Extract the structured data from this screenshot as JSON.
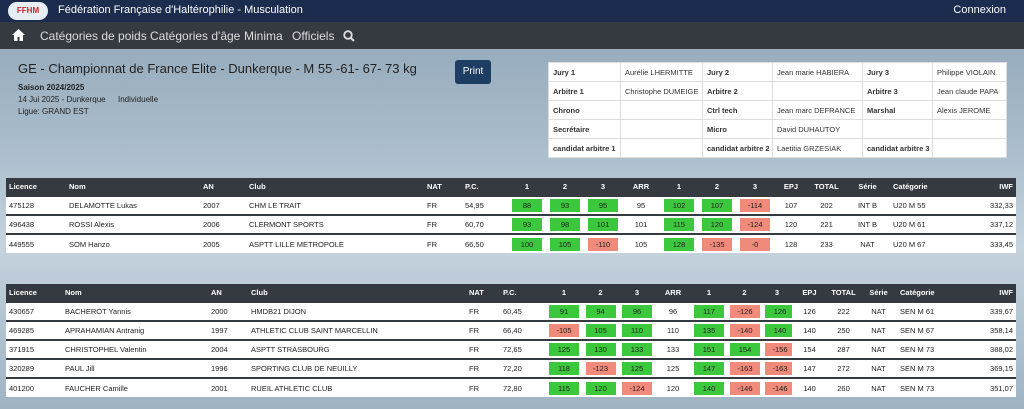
{
  "header": {
    "logo": "FFHM",
    "title": "Fédération Française d'Haltérophilie - Musculation",
    "login": "Connexion"
  },
  "nav": {
    "items": [
      "Catégories de poids",
      "Catégories d'âge",
      "Minima",
      "Officiels"
    ]
  },
  "competition": {
    "title": "GE - Championnat de France Elite - Dunkerque - M 55 -61- 67- 73 kg",
    "season": "Saison 2024/2025",
    "date": "14 Jui 2025 - Dunkerque",
    "type": "Individuelle",
    "league": "Ligue: GRAND EST",
    "print": "Print"
  },
  "officials": {
    "rows": [
      [
        "Jury 1",
        "Aurélie LHERMITTE",
        "Jury 2",
        "Jean marie HABIERA",
        "Jury 3",
        "Philippe VIOLAIN"
      ],
      [
        "Arbitre 1",
        "Christophe DUMEIGE",
        "Arbitre 2",
        null,
        "Arbitre 3",
        "Jean claude PAPA"
      ],
      [
        "Chrono",
        null,
        "Ctrl tech",
        "Jean marc DEFRANCE",
        "Marshal",
        "Alexis JEROME"
      ],
      [
        "Secrétaire",
        null,
        "Micro",
        "David DUHAUTOY",
        null,
        null
      ],
      [
        "candidat arbitre 1",
        null,
        "candidat arbitre 2",
        "Laetitia GRZESIAK",
        "candidat arbitre 3",
        null
      ]
    ]
  },
  "tables": [
    {
      "columns": [
        "Licence",
        "Nom",
        "AN",
        "Club",
        "NAT",
        "P.C.",
        "1",
        "2",
        "3",
        "ARR",
        "1",
        "2",
        "3",
        "EPJ",
        "TOTAL",
        "Série",
        "Catégorie",
        "IWF"
      ],
      "rows": [
        [
          "475128",
          "DELAMOTTE Lukas",
          "2007",
          "CHM LE TRAIT",
          "FR",
          "54,95",
          {
            "text": "88",
            "ok": true
          },
          {
            "text": "93",
            "ok": true
          },
          {
            "text": "95",
            "ok": true
          },
          "95",
          {
            "text": "102",
            "ok": true
          },
          {
            "text": "107",
            "ok": true
          },
          {
            "text": "-114",
            "ok": false
          },
          "107",
          "202",
          "INT B",
          "U20 M 55",
          "332,33"
        ],
        [
          "496438",
          "ROSSI Alexis",
          "2006",
          "CLERMONT SPORTS",
          "FR",
          "60,70",
          {
            "text": "93",
            "ok": true
          },
          {
            "text": "98",
            "ok": true
          },
          {
            "text": "101",
            "ok": true
          },
          "101",
          {
            "text": "115",
            "ok": true
          },
          {
            "text": "120",
            "ok": true
          },
          {
            "text": "-124",
            "ok": false
          },
          "120",
          "221",
          "INT B",
          "U20 M 61",
          "337,12"
        ],
        [
          "449555",
          "SOM Hanzo",
          "2005",
          "ASPTT LILLE METROPOLE",
          "FR",
          "66,50",
          {
            "text": "100",
            "ok": true
          },
          {
            "text": "105",
            "ok": true
          },
          {
            "text": "-110",
            "ok": false
          },
          "105",
          {
            "text": "128",
            "ok": true
          },
          {
            "text": "-135",
            "ok": false
          },
          {
            "text": "-0",
            "ok": false
          },
          "128",
          "233",
          "NAT",
          "U20 M 67",
          "333,45"
        ]
      ]
    },
    {
      "columns": [
        "Licence",
        "Nom",
        "AN",
        "Club",
        "NAT",
        "P.C.",
        "1",
        "2",
        "3",
        "ARR",
        "1",
        "2",
        "3",
        "EPJ",
        "TOTAL",
        "Série",
        "Catégorie",
        "IWF"
      ],
      "rows": [
        [
          "430657",
          "BACHEROT Yannis",
          "2000",
          "HMDB21 DIJON",
          "FR",
          "60,45",
          {
            "text": "91",
            "ok": true
          },
          {
            "text": "94",
            "ok": true
          },
          {
            "text": "96",
            "ok": true
          },
          "96",
          {
            "text": "117",
            "ok": true
          },
          {
            "text": "-126",
            "ok": false
          },
          {
            "text": "126",
            "ok": true
          },
          "126",
          "222",
          "NAT",
          "SEN M 61",
          "339,67"
        ],
        [
          "469285",
          "APRAHAMIAN Antranig",
          "1997",
          "ATHLETIC CLUB SAINT MARCELLIN",
          "FR",
          "66,40",
          {
            "text": "-105",
            "ok": false
          },
          {
            "text": "105",
            "ok": true
          },
          {
            "text": "110",
            "ok": true
          },
          "110",
          {
            "text": "135",
            "ok": true
          },
          {
            "text": "-140",
            "ok": false
          },
          {
            "text": "140",
            "ok": true
          },
          "140",
          "250",
          "NAT",
          "SEN M 67",
          "358,14"
        ],
        [
          "371915",
          "CHRISTOPHEL Valentin",
          "2004",
          "ASPTT STRASBOURG",
          "FR",
          "72,65",
          {
            "text": "125",
            "ok": true
          },
          {
            "text": "130",
            "ok": true
          },
          {
            "text": "133",
            "ok": true
          },
          "133",
          {
            "text": "151",
            "ok": true
          },
          {
            "text": "154",
            "ok": true
          },
          {
            "text": "-156",
            "ok": false
          },
          "154",
          "287",
          "NAT",
          "SEN M 73",
          "388,02"
        ],
        [
          "320289",
          "PAUL Jill",
          "1996",
          "SPORTING CLUB DE NEUILLY",
          "FR",
          "72,20",
          {
            "text": "118",
            "ok": true
          },
          {
            "text": "-123",
            "ok": false
          },
          {
            "text": "125",
            "ok": true
          },
          "125",
          {
            "text": "147",
            "ok": true
          },
          {
            "text": "-163",
            "ok": false
          },
          {
            "text": "-163",
            "ok": false
          },
          "147",
          "272",
          "NAT",
          "SEN M 73",
          "369,15"
        ],
        [
          "401200",
          "FAUCHER Camille",
          "2001",
          "RUEIL ATHLETIC CLUB",
          "FR",
          "72,80",
          {
            "text": "115",
            "ok": true
          },
          {
            "text": "120",
            "ok": true
          },
          {
            "text": "-124",
            "ok": false
          },
          "120",
          {
            "text": "140",
            "ok": true
          },
          {
            "text": "-146",
            "ok": false
          },
          {
            "text": "-146",
            "ok": false
          },
          "140",
          "260",
          "NAT",
          "SEN M 73",
          "351,07"
        ]
      ]
    }
  ]
}
